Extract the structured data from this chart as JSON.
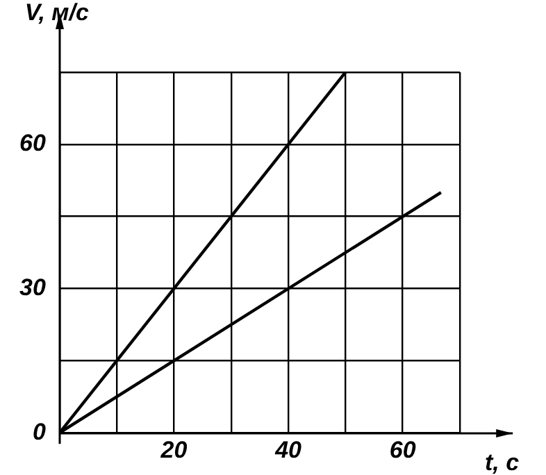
{
  "chart_data": {
    "type": "line",
    "xlabel": "t, с",
    "ylabel": "V, м/с",
    "series": [
      {
        "color": "#000000",
        "x": [
          0,
          50
        ],
        "values": [
          0,
          75
        ]
      },
      {
        "color": "#000000",
        "x": [
          0,
          66.7
        ],
        "values": [
          0,
          50
        ]
      }
    ],
    "xlim": [
      0,
      70
    ],
    "xticks": [
      {
        "value": 0,
        "label": null
      },
      {
        "value": 10,
        "label": null
      },
      20,
      {
        "value": 30,
        "label": null
      },
      40,
      {
        "value": 50,
        "label": null
      },
      60,
      {
        "value": 70,
        "label": null
      }
    ],
    "ylim": [
      0,
      75
    ],
    "yticks": [
      0,
      {
        "value": 15,
        "label": null
      },
      30,
      {
        "value": 45,
        "label": null
      },
      60,
      {
        "value": 75,
        "label": null
      }
    ],
    "grid": true,
    "legend": false,
    "marker": "none",
    "line_style": "solid"
  }
}
